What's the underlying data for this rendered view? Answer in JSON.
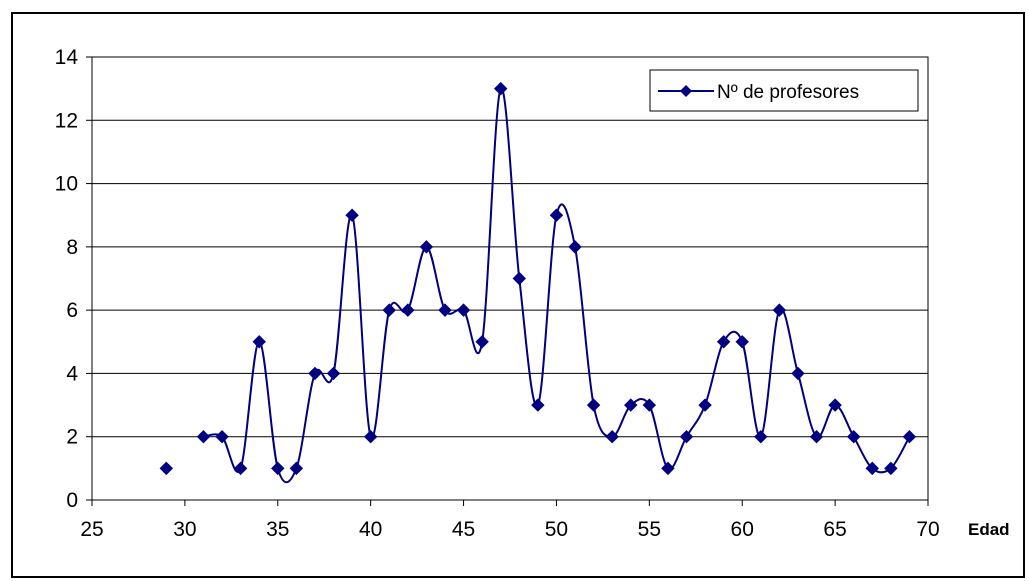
{
  "title_partial": "",
  "chart_data": {
    "type": "line",
    "title": "",
    "xlabel": "Edad",
    "ylabel": "",
    "xlim": [
      25,
      70
    ],
    "ylim": [
      0,
      14
    ],
    "xticks": [
      25,
      30,
      35,
      40,
      45,
      50,
      55,
      60,
      65,
      70
    ],
    "yticks": [
      0,
      2,
      4,
      6,
      8,
      10,
      12,
      14
    ],
    "grid": "horizontal",
    "legend": "top-right",
    "series": [
      {
        "name": "Nº de profesores",
        "color": "#000080",
        "marker": "diamond",
        "smooth": true,
        "points": [
          [
            29,
            1
          ],
          [
            31,
            2
          ],
          [
            32,
            2
          ],
          [
            33,
            1
          ],
          [
            34,
            5
          ],
          [
            35,
            1
          ],
          [
            36,
            1
          ],
          [
            37,
            4
          ],
          [
            38,
            4
          ],
          [
            39,
            9
          ],
          [
            40,
            2
          ],
          [
            41,
            6
          ],
          [
            42,
            6
          ],
          [
            43,
            8
          ],
          [
            44,
            6
          ],
          [
            45,
            6
          ],
          [
            46,
            5
          ],
          [
            47,
            13
          ],
          [
            48,
            7
          ],
          [
            49,
            3
          ],
          [
            50,
            9
          ],
          [
            51,
            8
          ],
          [
            52,
            3
          ],
          [
            53,
            2
          ],
          [
            54,
            3
          ],
          [
            55,
            3
          ],
          [
            56,
            1
          ],
          [
            57,
            2
          ],
          [
            58,
            3
          ],
          [
            59,
            5
          ],
          [
            60,
            5
          ],
          [
            61,
            2
          ],
          [
            62,
            6
          ],
          [
            63,
            4
          ],
          [
            64,
            2
          ],
          [
            65,
            3
          ],
          [
            66,
            2
          ],
          [
            67,
            1
          ],
          [
            68,
            1
          ],
          [
            69,
            2
          ]
        ]
      }
    ]
  }
}
